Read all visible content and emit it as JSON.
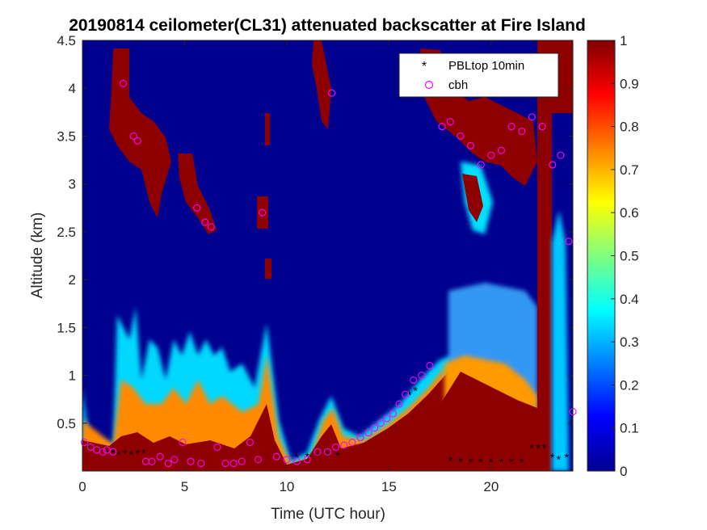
{
  "chart_data": {
    "type": "heatmap",
    "title": "20190814 ceilometer(CL31) attenuated backscatter at Fire Island",
    "xlabel": "Time (UTC hour)",
    "ylabel": "Altitude (km)",
    "xlim": [
      0,
      24
    ],
    "ylim": [
      0,
      4.5
    ],
    "xticks": [
      0,
      5,
      10,
      15,
      20
    ],
    "yticks": [
      0.5,
      1,
      1.5,
      2,
      2.5,
      3,
      3.5,
      4,
      4.5
    ],
    "colorbar": {
      "colormap": "jet",
      "range": [
        0,
        1
      ],
      "ticks": [
        0,
        0.1,
        0.2,
        0.3,
        0.4,
        0.5,
        0.6,
        0.7,
        0.8,
        0.9,
        1
      ]
    },
    "legend": {
      "position": "top-right",
      "entries": [
        {
          "label": "PBLtop 10min",
          "marker": "asterisk",
          "color": "#000000"
        },
        {
          "label": "cbh",
          "marker": "circle",
          "color": "#ff00ff"
        }
      ]
    },
    "series": [
      {
        "name": "PBLtop 10min",
        "x": [
          0.3,
          0.6,
          0.9,
          1.2,
          1.5,
          1.8,
          2.1,
          2.4,
          2.7,
          3.0,
          10.5,
          11.0,
          11.5,
          12.0,
          12.5,
          16.0,
          16.3,
          18.0,
          18.5,
          19.0,
          19.5,
          20.0,
          20.5,
          21.0,
          21.5,
          22.0,
          22.3,
          22.6,
          23.0,
          23.3,
          23.7
        ],
        "y": [
          0.25,
          0.24,
          0.22,
          0.2,
          0.2,
          0.18,
          0.19,
          0.18,
          0.19,
          0.2,
          0.15,
          0.16,
          0.17,
          0.18,
          0.17,
          0.8,
          0.85,
          0.12,
          0.11,
          0.1,
          0.1,
          0.1,
          0.1,
          0.1,
          0.1,
          0.25,
          0.25,
          0.25,
          0.15,
          0.13,
          0.15
        ]
      },
      {
        "name": "cbh",
        "x": [
          0.1,
          0.4,
          0.7,
          1.0,
          1.2,
          1.5,
          3.1,
          3.4,
          3.8,
          4.2,
          4.5,
          4.9,
          5.3,
          5.8,
          6.6,
          7.0,
          7.4,
          7.8,
          8.2,
          8.6,
          9.5,
          10.0,
          10.5,
          11.0,
          11.5,
          12.0,
          12.4,
          12.8,
          13.2,
          13.6,
          14.0,
          14.3,
          14.6,
          14.9,
          15.2,
          15.5,
          15.8,
          16.2,
          16.6,
          17.0,
          2.0,
          2.5,
          2.7,
          5.6,
          6.0,
          6.3,
          8.8,
          12.2,
          17.6,
          18.0,
          18.5,
          19.0,
          19.5,
          20.0,
          20.5,
          21.0,
          21.5,
          22.0,
          22.5,
          23.0,
          23.4,
          23.8,
          24.0
        ],
        "y": [
          0.3,
          0.25,
          0.22,
          0.2,
          0.22,
          0.2,
          0.1,
          0.1,
          0.15,
          0.08,
          0.12,
          0.3,
          0.1,
          0.08,
          0.25,
          0.08,
          0.08,
          0.1,
          0.3,
          0.12,
          0.15,
          0.12,
          0.1,
          0.12,
          0.2,
          0.2,
          0.25,
          0.27,
          0.3,
          0.35,
          0.4,
          0.45,
          0.5,
          0.55,
          0.6,
          0.7,
          0.8,
          0.95,
          1.0,
          1.1,
          4.05,
          3.5,
          3.45,
          2.75,
          2.6,
          2.55,
          2.7,
          3.95,
          3.6,
          3.65,
          3.5,
          3.4,
          3.2,
          3.3,
          3.35,
          3.6,
          3.55,
          3.7,
          3.6,
          3.2,
          3.3,
          2.4,
          0.62
        ]
      }
    ]
  }
}
